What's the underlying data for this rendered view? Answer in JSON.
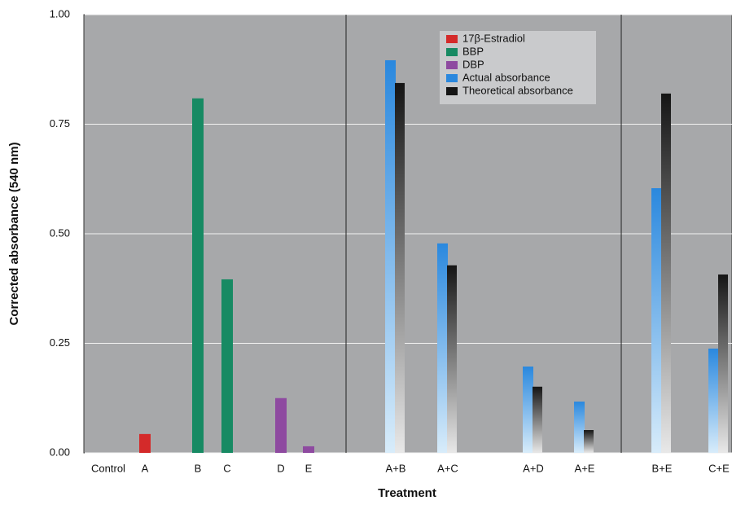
{
  "chart_data": {
    "type": "bar",
    "x_label": "Treatment",
    "y_label": "Corrected absorbance (540 nm)",
    "categories": [
      "Control",
      "A",
      "B",
      "C",
      "D",
      "E",
      "A+B",
      "A+C",
      "A+D",
      "A+E",
      "B+E",
      "C+E"
    ],
    "series": [
      {
        "name": "17β-Estradiol",
        "color": "#d42a2a",
        "values": [
          null,
          0.043,
          null,
          null,
          null,
          null,
          null,
          null,
          null,
          null,
          null,
          null
        ]
      },
      {
        "name": "BBP",
        "color": "#178a63",
        "values": [
          null,
          null,
          0.809,
          0.396,
          null,
          null,
          null,
          null,
          null,
          null,
          null,
          null
        ]
      },
      {
        "name": "DBP",
        "color": "#8e4aa0",
        "values": [
          null,
          null,
          null,
          null,
          0.125,
          0.015,
          null,
          null,
          null,
          null,
          null,
          null
        ]
      },
      {
        "name": "Actual absorbance",
        "color": "#2a88de",
        "values": [
          null,
          null,
          null,
          null,
          null,
          null,
          0.896,
          0.478,
          0.197,
          0.117,
          0.604,
          0.238
        ]
      },
      {
        "name": "Theoretical absorbance",
        "color": "#151515",
        "values": [
          null,
          null,
          null,
          null,
          null,
          null,
          0.844,
          0.428,
          0.151,
          0.052,
          0.82,
          0.407
        ]
      }
    ],
    "ylim": [
      0,
      1
    ],
    "yticks": [
      {
        "value": 0,
        "label": "0.00"
      },
      0.25,
      {
        "value": 0.5,
        "label": "0.50"
      },
      0.75,
      {
        "value": 1,
        "label": "1.00"
      }
    ],
    "grid": true,
    "legend": "upper right"
  }
}
